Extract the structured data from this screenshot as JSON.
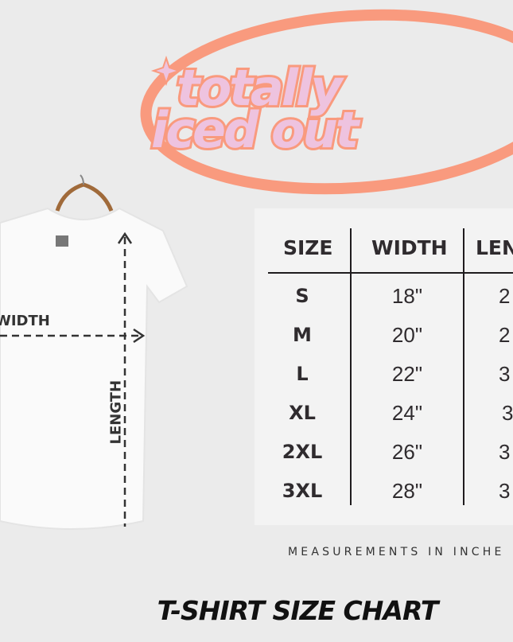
{
  "logo": {
    "text_line1": "totally",
    "text_line2": "iced out",
    "colors": {
      "ring": "#f99a7e",
      "letters": "#eec3df"
    }
  },
  "shirt": {
    "width_label": "WIDTH",
    "length_label": "LENGTH"
  },
  "table": {
    "headers": [
      "SIZE",
      "WIDTH",
      "LEN"
    ],
    "rows": [
      {
        "size": "S",
        "width": "18\"",
        "length": "2"
      },
      {
        "size": "M",
        "width": "20\"",
        "length": "2"
      },
      {
        "size": "L",
        "width": "22\"",
        "length": "3"
      },
      {
        "size": "XL",
        "width": "24\"",
        "length": "3"
      },
      {
        "size": "2XL",
        "width": "26\"",
        "length": "3"
      },
      {
        "size": "3XL",
        "width": "28\"",
        "length": "3"
      }
    ]
  },
  "note": "MEASUREMENTS IN INCHE",
  "title": "T-SHIRT SIZE CHART"
}
